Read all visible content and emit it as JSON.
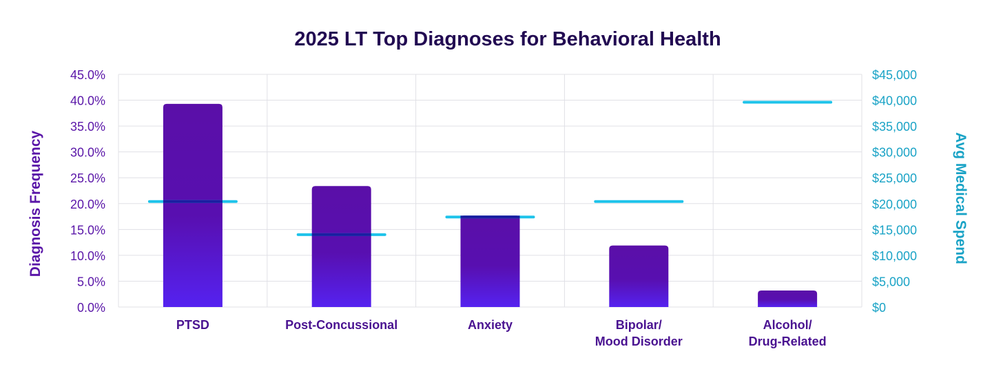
{
  "chart_data": {
    "type": "bar",
    "title": "2025 LT Top Diagnoses for Behavioral Health",
    "ylabel": "Diagnosis Frequency",
    "y2label": "Avg Medical Spend",
    "categories": [
      [
        "PTSD"
      ],
      [
        "Post-Concussional"
      ],
      [
        "Anxiety"
      ],
      [
        "Bipolar/",
        "Mood Disorder"
      ],
      [
        "Alcohol/",
        "Drug-Related"
      ]
    ],
    "yticks": [
      "0.0%",
      "5.0%",
      "10.0%",
      "15.0%",
      "20.0%",
      "25.0%",
      "30.0%",
      "35.0%",
      "40.0%",
      "45.0%"
    ],
    "y2ticks": [
      "$0",
      "$5,000",
      "$10,000",
      "$15,000",
      "$20,000",
      "$25,000",
      "$30,000",
      "$35,000",
      "$40,000",
      "$45,000"
    ],
    "ylim": [
      0,
      45
    ],
    "y2lim": [
      0,
      45000
    ],
    "grid": true,
    "series": [
      {
        "values": [
          39.3,
          23.4,
          17.7,
          11.9,
          3.2
        ],
        "axis": "left",
        "kind": "bar",
        "color": "#5a0fa8",
        "color_bottom": "#5522f0"
      },
      {
        "values": [
          20400,
          14000,
          17400,
          20400,
          39600
        ],
        "axis": "right",
        "kind": "marker-line",
        "color": "#1ec3ea"
      }
    ]
  }
}
